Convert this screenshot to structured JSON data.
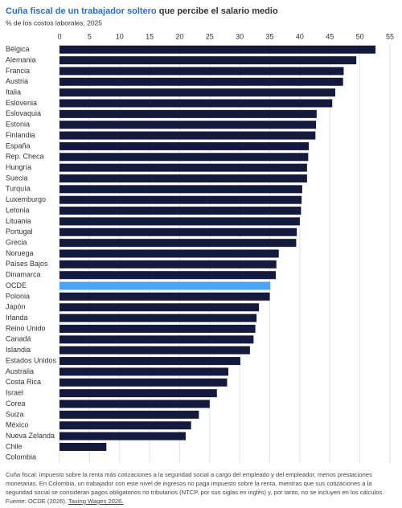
{
  "chart_data": {
    "type": "hbar",
    "title_highlight": "Cuña fiscal de un trabajador soltero",
    "title_rest": "que percibe el salario medio",
    "subtitle": "% de los costos laborales, 2025",
    "categories": [
      "Bélgica",
      "Alemania",
      "Francia",
      "Austria",
      "Italia",
      "Eslovenia",
      "Eslovaquia",
      "Estonia",
      "Finlandia",
      "España",
      "Rep. Checa",
      "Hungría",
      "Suecia",
      "Turquía",
      "Luxemburgo",
      "Letonia",
      "Lituania",
      "Portugal",
      "Grecia",
      "Noruega",
      "Países Bajos",
      "Dinamarca",
      "OCDE",
      "Polonia",
      "Japón",
      "Irlanda",
      "Reino Unido",
      "Canadá",
      "Islandia",
      "Estados Unidos",
      "Australia",
      "Costa Rica",
      "Israel",
      "Corea",
      "Suiza",
      "México",
      "Nueva Zelanda",
      "Chile",
      "Colombia"
    ],
    "values": [
      52.6,
      49.4,
      47.3,
      47.2,
      45.9,
      45.4,
      42.8,
      42.7,
      42.6,
      41.5,
      41.4,
      41.2,
      41.2,
      40.4,
      40.3,
      40.2,
      40.0,
      39.5,
      39.4,
      36.5,
      36.1,
      36.0,
      35.1,
      35.0,
      33.2,
      32.8,
      32.6,
      32.3,
      31.7,
      30.1,
      28.1,
      27.9,
      26.2,
      25.0,
      23.2,
      21.9,
      21.0,
      7.8,
      0
    ],
    "color": "#141a3d",
    "highlight": {
      "category": "OCDE",
      "color": "#4aa5f5"
    },
    "xlim": [
      0,
      55
    ],
    "xticks": [
      0,
      5,
      10,
      15,
      20,
      25,
      30,
      35,
      40,
      45,
      50,
      55
    ],
    "grid": true
  },
  "footer": {
    "note": "Cuña fiscal: impuesto sobre la renta más cotizaciones a la seguridad social a cargo del empleado y del empleador, menos prestaciones monetarias. En Colombia, un trabajador con este nivel de ingresos no paga impuesto sobre la renta, mientras que sus cotizaciones a la seguridad social se consideran pagos obligatorios no tributarios (NTCP, por sus siglas en inglés) y, por tanto, no se incluyen en los cálculos.",
    "source": "Fuente: OCDE (2026).",
    "source_link": "Taxing Wages 2026."
  }
}
